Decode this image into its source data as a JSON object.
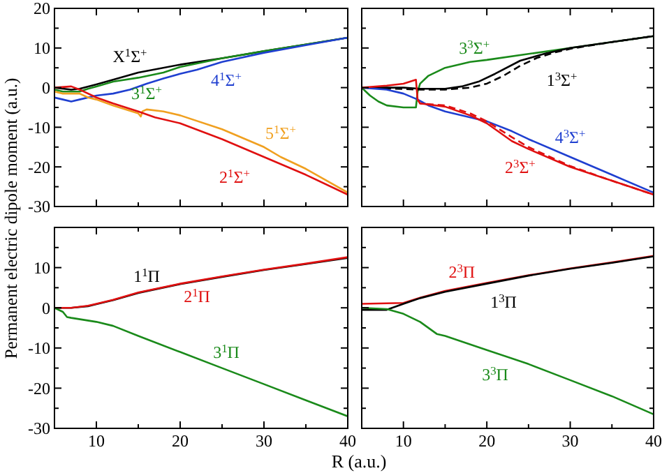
{
  "chart_data": [
    {
      "type": "line",
      "ylabel": "Permanent electric dipole moment (a.u.)",
      "xlim": [
        5,
        40
      ],
      "ylim": [
        -30,
        20
      ],
      "xticks": [
        {
          "value": 10,
          "label": null
        },
        {
          "value": 15,
          "label": null
        },
        {
          "value": 20,
          "label": null
        },
        {
          "value": 25,
          "label": null
        },
        {
          "value": 30,
          "label": null
        },
        {
          "value": 35,
          "label": null
        },
        {
          "value": 40,
          "label": null
        }
      ],
      "yticks": [
        -30,
        {
          "value": -25,
          "label": null
        },
        -20,
        {
          "value": -15,
          "label": null
        },
        -10,
        {
          "value": -5,
          "label": null
        },
        0,
        {
          "value": 5,
          "label": null
        },
        10,
        {
          "value": 15,
          "label": null
        },
        20
      ],
      "tick_labels": "y",
      "line_style": "solid",
      "marker": "none",
      "grid": false,
      "series": [
        {
          "name": "X$^{1}$Σ$^{+}$",
          "color": "#000000",
          "x": [
            5,
            7,
            8,
            10,
            12,
            15,
            20,
            25,
            30,
            35,
            40
          ],
          "values": [
            0,
            -0.5,
            -0.3,
            0.8,
            2,
            3.8,
            5.8,
            7.4,
            9.2,
            10.9,
            12.6
          ]
        },
        {
          "name": "3$^{1}$Σ$^{+}$",
          "color": "#1a8a1a",
          "x": [
            5,
            6,
            8,
            9,
            10,
            12,
            15,
            18,
            20,
            25,
            30,
            35,
            40
          ],
          "values": [
            -0.5,
            -1,
            -1,
            -0.3,
            0.3,
            1.5,
            2.5,
            3.8,
            5.2,
            7.4,
            9.2,
            10.9,
            12.6
          ]
        },
        {
          "name": "4$^{1}$Σ$^{+}$",
          "color": "#1f3fd0",
          "x": [
            5,
            6,
            7,
            8,
            10,
            12,
            14,
            16,
            18,
            20,
            22,
            25,
            30,
            35,
            40
          ],
          "values": [
            -2.5,
            -3,
            -3.5,
            -3,
            -2,
            -1.5,
            -0.5,
            1,
            2.3,
            3.5,
            4.5,
            6.5,
            8.8,
            10.7,
            12.6
          ]
        },
        {
          "name": "5$^{1}$Σ$^{+}$",
          "color": "#f0a020",
          "x": [
            5,
            6,
            8,
            9,
            10,
            12,
            15,
            15.3,
            15.5,
            16,
            18,
            20,
            25,
            30,
            32,
            35,
            40
          ],
          "values": [
            -1,
            -1.5,
            -1.5,
            -2.5,
            -3,
            -4.5,
            -6.5,
            -7.3,
            -6,
            -5.5,
            -6,
            -7,
            -10.5,
            -15,
            -17.5,
            -20.5,
            -26.5
          ]
        },
        {
          "name": "2$^{1}$Σ$^{+}$",
          "color": "#e01010",
          "x": [
            5,
            7,
            8,
            10,
            12,
            15,
            17,
            20,
            25,
            30,
            35,
            40
          ],
          "values": [
            0,
            0.3,
            -0.5,
            -2.5,
            -4,
            -6,
            -7.5,
            -9,
            -13,
            -17.5,
            -22,
            -27
          ]
        }
      ]
    },
    {
      "type": "line",
      "xlim": [
        5,
        40
      ],
      "ylim": [
        -30,
        20
      ],
      "xticks": [
        {
          "value": 10,
          "label": null
        },
        {
          "value": 15,
          "label": null
        },
        {
          "value": 20,
          "label": null
        },
        {
          "value": 25,
          "label": null
        },
        {
          "value": 30,
          "label": null
        },
        {
          "value": 35,
          "label": null
        },
        {
          "value": 40,
          "label": null
        }
      ],
      "yticks": [
        {
          "value": -30,
          "label": null
        },
        {
          "value": -25,
          "label": null
        },
        {
          "value": -20,
          "label": null
        },
        {
          "value": -15,
          "label": null
        },
        {
          "value": -10,
          "label": null
        },
        {
          "value": -5,
          "label": null
        },
        {
          "value": 0,
          "label": null
        },
        {
          "value": 5,
          "label": null
        },
        {
          "value": 10,
          "label": null
        },
        {
          "value": 15,
          "label": null
        },
        {
          "value": 20,
          "label": null
        }
      ],
      "tick_labels": false,
      "line_style": "solid",
      "marker": "none",
      "grid": false,
      "series": [
        {
          "name": "3$^{3}$Σ$^{+}$",
          "color": "#1a8a1a",
          "x": [
            5,
            6,
            7,
            8,
            10,
            11.5,
            11.7,
            12,
            13,
            15,
            18,
            20,
            25,
            30,
            35,
            40
          ],
          "values": [
            0,
            -2,
            -3.5,
            -4.5,
            -5,
            -5,
            -1,
            1,
            3,
            5,
            6.5,
            7,
            8.5,
            10,
            11.5,
            13
          ]
        },
        {
          "name": "1$^{3}$Σ$^{+}$",
          "color": "#000000",
          "x": [
            5,
            10,
            12,
            15,
            17,
            19,
            21,
            24,
            27,
            30,
            35,
            40
          ],
          "values": [
            0,
            0,
            -0.3,
            -0.3,
            0.3,
            1.5,
            3.5,
            6.8,
            8.6,
            10,
            11.5,
            13
          ]
        },
        {
          "color": "#000000",
          "line_style": "dashed",
          "x": [
            5,
            12,
            15,
            18,
            20,
            22,
            24,
            26,
            28,
            30,
            35,
            40
          ],
          "values": [
            0,
            -0.5,
            -0.5,
            0,
            1,
            3,
            5.5,
            7.5,
            8.8,
            9.8,
            11.5,
            13
          ]
        },
        {
          "name": "4$^{3}$Σ$^{+}$",
          "color": "#1f3fd0",
          "x": [
            5,
            8,
            10,
            11.7,
            13,
            15,
            18,
            20,
            23,
            25,
            30,
            35,
            40
          ],
          "values": [
            0,
            -0.5,
            -1.5,
            -3,
            -4.5,
            -6,
            -7.5,
            -8.5,
            -11,
            -13,
            -17.5,
            -22,
            -26.5
          ]
        },
        {
          "name": "2$^{3}$Σ$^{+}$",
          "color": "#e01010",
          "x": [
            5,
            8,
            10,
            11.5,
            11.7,
            12,
            15,
            18,
            20,
            23,
            25,
            30,
            35,
            40
          ],
          "values": [
            0,
            0.5,
            1,
            2,
            -3,
            -4,
            -4.8,
            -7,
            -9,
            -13.5,
            -15.5,
            -20,
            -23.5,
            -27
          ]
        },
        {
          "color": "#e01010",
          "line_style": "dashed",
          "x": [
            11.7,
            12,
            15,
            18,
            20,
            23,
            25,
            30,
            35,
            40
          ],
          "values": [
            -3,
            -4,
            -4.5,
            -6.5,
            -8.5,
            -12.5,
            -15,
            -19.8,
            -23.5,
            -27
          ]
        }
      ]
    },
    {
      "type": "line",
      "xlabel": "R (a.u.)",
      "xlim": [
        5,
        40
      ],
      "ylim": [
        -30,
        20
      ],
      "xticks": [
        10,
        {
          "value": 15,
          "label": null
        },
        20,
        {
          "value": 25,
          "label": null
        },
        30,
        {
          "value": 35,
          "label": null
        },
        40
      ],
      "yticks": [
        -30,
        {
          "value": -25,
          "label": null
        },
        -20,
        {
          "value": -15,
          "label": null
        },
        -10,
        {
          "value": -5,
          "label": null
        },
        0,
        {
          "value": 5,
          "label": null
        },
        10,
        {
          "value": 15,
          "label": null
        },
        {
          "value": 20,
          "label": null
        }
      ],
      "line_style": "solid",
      "marker": "none",
      "grid": false,
      "series": [
        {
          "name": "1$^{1}$Π",
          "color": "#000000",
          "x": [
            5,
            7,
            9,
            10,
            12,
            15,
            20,
            25,
            30,
            35,
            40
          ],
          "values": [
            0,
            0,
            0.4,
            0.9,
            1.9,
            3.7,
            5.9,
            7.7,
            9.4,
            10.9,
            12.4
          ]
        },
        {
          "name": "2$^{1}$Π",
          "color": "#e01010",
          "x": [
            5,
            7,
            9,
            10,
            12,
            15,
            20,
            25,
            30,
            35,
            40
          ],
          "values": [
            0,
            0,
            0.5,
            1,
            2,
            3.8,
            6,
            7.8,
            9.5,
            11,
            12.6
          ]
        },
        {
          "name": "3$^{1}$Π",
          "color": "#1a8a1a",
          "x": [
            5,
            6,
            6.5,
            7,
            10,
            12,
            15,
            20,
            25,
            30,
            35,
            40
          ],
          "values": [
            0,
            -1,
            -2.3,
            -2.5,
            -3.5,
            -4.5,
            -7,
            -11,
            -15,
            -19,
            -23,
            -27
          ]
        }
      ]
    },
    {
      "type": "line",
      "xlim": [
        5,
        40
      ],
      "ylim": [
        -30,
        20
      ],
      "xticks": [
        10,
        {
          "value": 15,
          "label": null
        },
        20,
        {
          "value": 25,
          "label": null
        },
        30,
        {
          "value": 35,
          "label": null
        },
        40
      ],
      "yticks": [
        {
          "value": -30,
          "label": null
        },
        {
          "value": -25,
          "label": null
        },
        {
          "value": -20,
          "label": null
        },
        {
          "value": -15,
          "label": null
        },
        {
          "value": -10,
          "label": null
        },
        {
          "value": -5,
          "label": null
        },
        {
          "value": 0,
          "label": null
        },
        {
          "value": 5,
          "label": null
        },
        {
          "value": 10,
          "label": null
        },
        {
          "value": 15,
          "label": null
        },
        {
          "value": 20,
          "label": null
        }
      ],
      "tick_labels": "x",
      "line_style": "solid",
      "marker": "none",
      "grid": false,
      "series": [
        {
          "name": "2$^{3}$Π",
          "color": "#e01010",
          "x": [
            5,
            10,
            12,
            15,
            20,
            25,
            30,
            35,
            40
          ],
          "values": [
            1,
            1.2,
            2.5,
            4.2,
            6.2,
            8.1,
            9.8,
            11.3,
            12.9
          ]
        },
        {
          "name": "1$^{3}$Π",
          "color": "#000000",
          "x": [
            5,
            8,
            10,
            12,
            15,
            20,
            25,
            30,
            35,
            40
          ],
          "values": [
            -0.5,
            -0.5,
            1,
            2.4,
            4,
            6,
            8,
            9.7,
            11.2,
            12.8
          ]
        },
        {
          "name": "3$^{3}$Π",
          "color": "#1a8a1a",
          "x": [
            5,
            8,
            10,
            12,
            14,
            15,
            20,
            25,
            30,
            35,
            40
          ],
          "values": [
            0,
            -0.3,
            -1.5,
            -3.5,
            -6.5,
            -7,
            -10.5,
            -14,
            -18,
            -22,
            -26.5
          ]
        }
      ]
    }
  ]
}
